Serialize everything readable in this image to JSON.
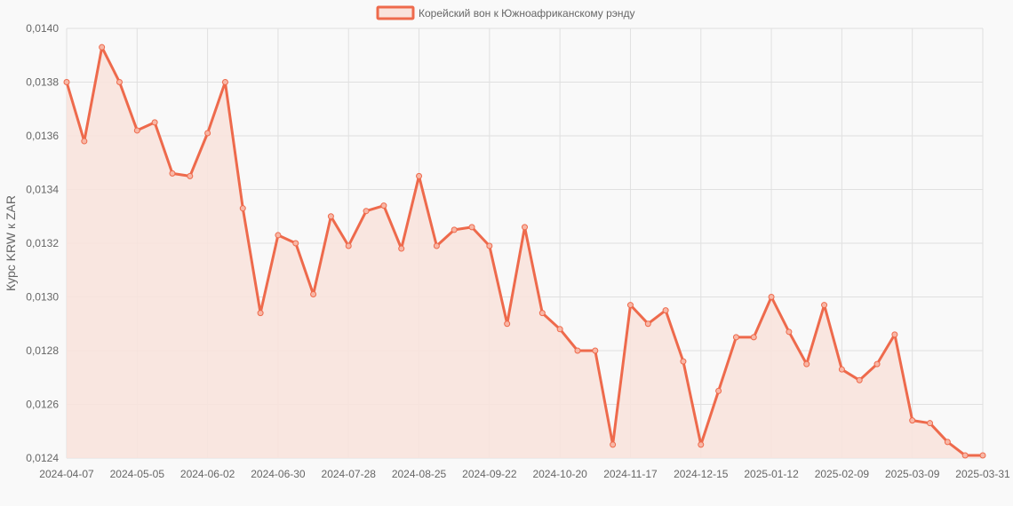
{
  "chart_data": {
    "type": "line",
    "legend_position": "top",
    "grid": true,
    "xlabel": "",
    "ylabel": "Курс KRW к ZAR",
    "ylim": [
      0.0124,
      0.014
    ],
    "y_ticks": [
      "0,0124",
      "0,0126",
      "0,0128",
      "0,0130",
      "0,0132",
      "0,0134",
      "0,0136",
      "0,0138",
      "0,0140"
    ],
    "x_ticks": [
      "2024-04-07",
      "2024-05-05",
      "2024-06-02",
      "2024-06-30",
      "2024-07-28",
      "2024-08-25",
      "2024-09-22",
      "2024-10-20",
      "2024-11-17",
      "2024-12-15",
      "2025-01-12",
      "2025-02-09",
      "2025-03-09",
      "2025-03-31"
    ],
    "colors": {
      "line": "#ee6a4c",
      "fill": "#f9e3dc",
      "grid": "#e0e0e0"
    },
    "series": [
      {
        "name": "Корейский вон к Южноафриканскому рэнду",
        "values": [
          0.0138,
          0.01358,
          0.01393,
          0.0138,
          0.01362,
          0.01365,
          0.01346,
          0.01345,
          0.01361,
          0.0138,
          0.01333,
          0.01294,
          0.01323,
          0.0132,
          0.01301,
          0.0133,
          0.01319,
          0.01332,
          0.01334,
          0.01318,
          0.01345,
          0.01319,
          0.01325,
          0.01326,
          0.01319,
          0.0129,
          0.01326,
          0.01294,
          0.01288,
          0.0128,
          0.0128,
          0.01245,
          0.01297,
          0.0129,
          0.01295,
          0.01276,
          0.01245,
          0.01265,
          0.01285,
          0.01285,
          0.013,
          0.01287,
          0.01275,
          0.01297,
          0.01273,
          0.01269,
          0.01275,
          0.01286,
          0.01254,
          0.01253,
          0.01246,
          0.01241,
          0.01241
        ]
      }
    ]
  }
}
